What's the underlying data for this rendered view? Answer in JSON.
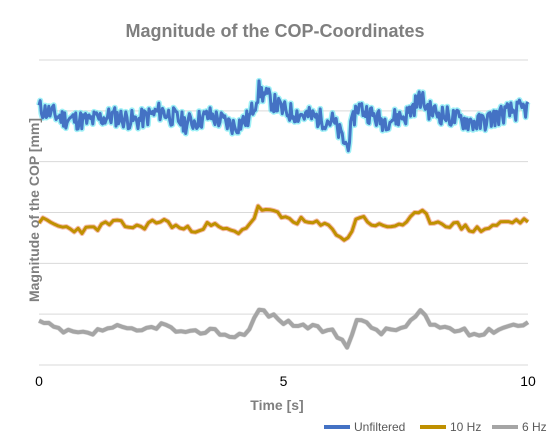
{
  "chart_data": {
    "type": "line",
    "title": "Magnitude of the COP-Coordinates",
    "xlabel": "Time [s]",
    "ylabel": "Magnitude of the COP [mm]",
    "xlim": [
      0,
      10
    ],
    "x_ticks": [
      "0",
      "5",
      "10"
    ],
    "grid": true,
    "y_tick_labels_shown": false,
    "legend_position": "bottom-right",
    "series": [
      {
        "name": "Unfiltered",
        "color": "#4472c4",
        "glow_color": "#5ee6f0",
        "x": [
          0.0,
          0.5,
          1.0,
          1.5,
          2.0,
          2.5,
          3.0,
          3.5,
          4.0,
          4.3,
          4.5,
          5.0,
          5.5,
          6.0,
          6.3,
          6.5,
          7.0,
          7.5,
          7.8,
          8.0,
          8.5,
          9.0,
          9.5,
          10.0
        ],
        "y": [
          101,
          97,
          96,
          98,
          96,
          100,
          95,
          98,
          94,
          97,
          108,
          100,
          98,
          96,
          86,
          102,
          96,
          98,
          105,
          100,
          97,
          95,
          99,
          101
        ]
      },
      {
        "name": "10 Hz",
        "color": "#bf9000",
        "glow_color": "#f08c6e",
        "x": [
          0.0,
          0.5,
          1.0,
          1.5,
          2.0,
          2.5,
          3.0,
          3.5,
          4.0,
          4.3,
          4.5,
          5.0,
          5.5,
          6.0,
          6.3,
          6.5,
          7.0,
          7.5,
          7.8,
          8.0,
          8.5,
          9.0,
          9.5,
          10.0
        ],
        "y": [
          57,
          54,
          53,
          56,
          54,
          57,
          53,
          55,
          52,
          55,
          62,
          58,
          56,
          54,
          48,
          59,
          54,
          56,
          60,
          57,
          55,
          53,
          56,
          57
        ]
      },
      {
        "name": "6 Hz",
        "color": "#a5a5a5",
        "glow_color": "#c8c8c8",
        "x": [
          0.0,
          0.5,
          1.0,
          1.5,
          2.0,
          2.5,
          3.0,
          3.5,
          4.0,
          4.3,
          4.5,
          5.0,
          5.5,
          6.0,
          6.3,
          6.5,
          7.0,
          7.5,
          7.8,
          8.0,
          8.5,
          9.0,
          9.5,
          10.0
        ],
        "y": [
          17,
          13,
          12,
          15,
          13,
          16,
          12,
          14,
          11,
          14,
          22,
          17,
          15,
          13,
          8,
          18,
          13,
          15,
          21,
          16,
          14,
          12,
          15,
          17
        ]
      }
    ]
  }
}
